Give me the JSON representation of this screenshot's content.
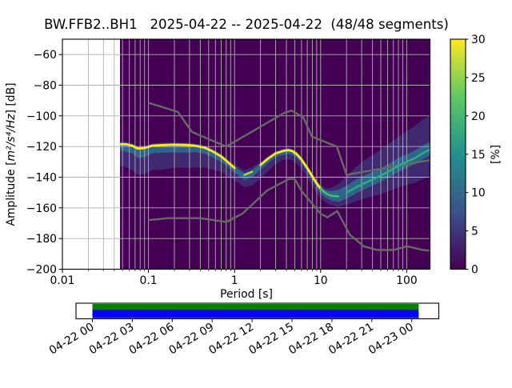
{
  "title": "BW.FFB2..BH1   2025-04-22 -- 2025-04-22  (48/48 segments)",
  "axes": {
    "x_label": "Period [s]",
    "y_label": {
      "prefix": "Amplitude [",
      "math": "m²/s⁴/Hz",
      "suffix": "] [dB]"
    },
    "x_tick_labels": [
      "0.01",
      "0.1",
      "1",
      "10",
      "100"
    ],
    "x_tick_values": [
      0.01,
      0.1,
      1,
      10,
      100
    ],
    "y_tick_values": [
      -60,
      -80,
      -100,
      -120,
      -140,
      -160,
      -180,
      -200
    ],
    "xlim_s": [
      0.01,
      186
    ],
    "ylim_db": [
      -200,
      -50
    ],
    "xscale": "log",
    "grid": true
  },
  "colorbar": {
    "label": "[%]",
    "tick_values": [
      0,
      5,
      10,
      15,
      20,
      25,
      30
    ],
    "range": [
      0,
      30
    ],
    "gradient_stops": [
      "#440154",
      "#3b528b",
      "#21918c",
      "#5ec962",
      "#fde725"
    ]
  },
  "chart_data": {
    "type": "heatmap",
    "title": "BW.FFB2..BH1   2025-04-22 -- 2025-04-22  (48/48 segments)",
    "xlabel": "Period [s]",
    "ylabel": "Amplitude [m²/s⁴/Hz] [dB]",
    "colorbar_label": "[%]",
    "probability_range_pct": [
      0,
      30
    ],
    "histogram_period_range_s": [
      0.047,
      186
    ],
    "psd_mode": {
      "periods_s": [
        0.047,
        0.055,
        0.065,
        0.075,
        0.09,
        0.11,
        0.15,
        0.2,
        0.28,
        0.36,
        0.45,
        0.55,
        0.7,
        0.85,
        1.0,
        1.3,
        1.6,
        2.0,
        2.5,
        3.0,
        3.6,
        4.2,
        4.7,
        5.3,
        6.0,
        7.0,
        8.0,
        9.0,
        10,
        11.5,
        13,
        16,
        20,
        25,
        32,
        40,
        50,
        63,
        80,
        100,
        125,
        158,
        186
      ],
      "db": [
        -118.5,
        -118.5,
        -119.5,
        -121.3,
        -121.0,
        -119.5,
        -119.0,
        -118.8,
        -119.0,
        -119.6,
        -120.8,
        -123.0,
        -126.5,
        -130.5,
        -134.0,
        -138.5,
        -136.5,
        -132.0,
        -127.5,
        -124.5,
        -123.0,
        -122.3,
        -123.0,
        -125.0,
        -128.5,
        -134.0,
        -139.5,
        -144.0,
        -147.5,
        -150.5,
        -152.0,
        -152.5,
        -150.0,
        -147.0,
        -144.0,
        -141.5,
        -139.0,
        -136.0,
        -132.5,
        -130.0,
        -127.5,
        -124.0,
        -122.0
      ]
    },
    "spread_outer_db": {
      "up": [
        1.5,
        1.5,
        1.5,
        1.5,
        1.5,
        1.5,
        1.5,
        1.5,
        1.5,
        1.5,
        1.5,
        2,
        2,
        2,
        2.5,
        3,
        3,
        2,
        1.5,
        1.5,
        1.5,
        1.5,
        1.5,
        2,
        2,
        2,
        2,
        2,
        2.5,
        3,
        5,
        8,
        11,
        13,
        15,
        16,
        17,
        18,
        19,
        20,
        21,
        22,
        22
      ],
      "down": [
        14,
        15,
        16,
        17,
        17,
        16,
        16,
        15,
        15,
        14,
        13,
        12,
        10,
        9,
        8,
        8,
        9,
        9,
        8,
        7,
        6,
        6,
        6,
        6,
        6,
        6,
        6,
        6,
        6,
        6,
        6,
        7,
        8,
        9,
        10,
        11,
        12,
        13,
        14,
        15,
        16,
        17,
        17
      ]
    },
    "spread_inner_db": {
      "up": [
        1,
        1,
        1,
        1,
        1,
        1,
        1,
        1,
        1,
        1,
        1,
        1,
        1,
        1,
        1,
        1,
        1,
        1,
        1,
        1,
        1,
        1,
        1,
        1,
        1,
        1,
        1,
        1,
        1.5,
        2,
        3,
        4,
        4.5,
        5,
        5,
        5,
        5,
        5,
        5,
        5,
        5,
        5,
        5
      ],
      "down": [
        4,
        5,
        5,
        6,
        6,
        5,
        5,
        5,
        5,
        4,
        4,
        4,
        3.5,
        3,
        3,
        3.5,
        3.5,
        3,
        3,
        2.5,
        2.5,
        2.5,
        2.5,
        2.5,
        2.5,
        2.5,
        2.5,
        2.5,
        3,
        3,
        3,
        3.5,
        4,
        4,
        4,
        4,
        4,
        4,
        4,
        4,
        4,
        4,
        4
      ]
    },
    "mode_line_segments": [
      {
        "from_s": 0.047,
        "to_s": 1.08,
        "color": "#fde725",
        "width": 2.8
      },
      {
        "from_s": 1.08,
        "to_s": 1.85,
        "color": "#addc30",
        "width": 2.4
      },
      {
        "from_s": 1.85,
        "to_s": 10.7,
        "color": "#fde725",
        "width": 2.8
      },
      {
        "from_s": 10.7,
        "to_s": 18.5,
        "color": "#48c16e",
        "width": 2.4
      },
      {
        "from_s": 18.5,
        "to_s": 186,
        "color": "#2ab07f",
        "width": 2.4
      }
    ],
    "noise_models": {
      "nhnm": {
        "periods_s": [
          0.1,
          0.22,
          0.32,
          0.8,
          3.8,
          4.6,
          6.3,
          7.9,
          15.4,
          20.0,
          354.8
        ],
        "db": [
          -91.5,
          -97.4,
          -110.5,
          -120.0,
          -98.0,
          -96.5,
          -101.0,
          -113.5,
          -120.0,
          -138.5,
          -126.0
        ]
      },
      "nlnm": {
        "periods_s": [
          0.1,
          0.17,
          0.4,
          0.8,
          1.24,
          2.4,
          4.3,
          5.0,
          6.0,
          10.0,
          12.0,
          15.6,
          21.9,
          31.6,
          45.0,
          70.0,
          101.0,
          154.0,
          328.0
        ],
        "db": [
          -168.0,
          -166.7,
          -166.7,
          -169.2,
          -163.7,
          -148.6,
          -141.1,
          -141.1,
          -149.0,
          -163.8,
          -166.2,
          -162.1,
          -177.5,
          -185.0,
          -187.5,
          -187.5,
          -185.0,
          -187.5,
          -189.2
        ]
      }
    }
  },
  "timeline": {
    "tick_labels": [
      "04-22 00",
      "04-22 03",
      "04-22 06",
      "04-22 09",
      "04-22 12",
      "04-22 15",
      "04-22 18",
      "04-22 21",
      "04-23 00"
    ],
    "coverage_top_color": "#008000",
    "coverage_bottom_color": "#0000ff"
  },
  "colors": {
    "figure_background": "#ffffff",
    "histogram_zero": "#440154",
    "grid": "#b0b0b0",
    "noise_model": "#696969",
    "spread_outer_fill": "#3b528b",
    "spread_inner_fill": "#2f6c8e",
    "spine": "#000000"
  }
}
